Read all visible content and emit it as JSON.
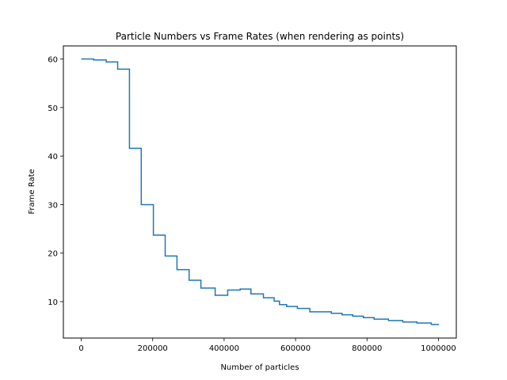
{
  "chart_data": {
    "type": "line",
    "title": "Particle Numbers vs Frame Rates (when rendering as points)",
    "xlabel": "Number of particles",
    "ylabel": "Frame Rate",
    "xlim": [
      -50000,
      1050000
    ],
    "ylim": [
      2.5,
      62.7
    ],
    "x_ticks": [
      0,
      200000,
      400000,
      600000,
      800000,
      1000000
    ],
    "x_tick_labels": [
      "0",
      "200000",
      "400000",
      "600000",
      "800000",
      "1000000"
    ],
    "y_ticks": [
      10,
      20,
      30,
      40,
      50,
      60
    ],
    "y_tick_labels": [
      "10",
      "20",
      "30",
      "40",
      "50",
      "60"
    ],
    "grid": false,
    "series": [
      {
        "color": "#1f77b4",
        "step": true,
        "x": [
          0,
          35000,
          70000,
          102000,
          135000,
          168000,
          202000,
          235000,
          268000,
          302000,
          335000,
          375000,
          410000,
          445000,
          475000,
          510000,
          540000,
          555000,
          575000,
          605000,
          640000,
          700000,
          730000,
          760000,
          790000,
          820000,
          860000,
          900000,
          940000,
          980000,
          1000000
        ],
        "y": [
          60.0,
          59.8,
          59.4,
          57.9,
          41.6,
          30.0,
          23.7,
          19.4,
          16.6,
          14.4,
          12.8,
          11.3,
          12.4,
          12.6,
          11.6,
          10.8,
          10.1,
          9.4,
          9.0,
          8.6,
          7.9,
          7.6,
          7.3,
          7.0,
          6.7,
          6.4,
          6.1,
          5.8,
          5.6,
          5.3,
          5.2
        ]
      }
    ]
  }
}
